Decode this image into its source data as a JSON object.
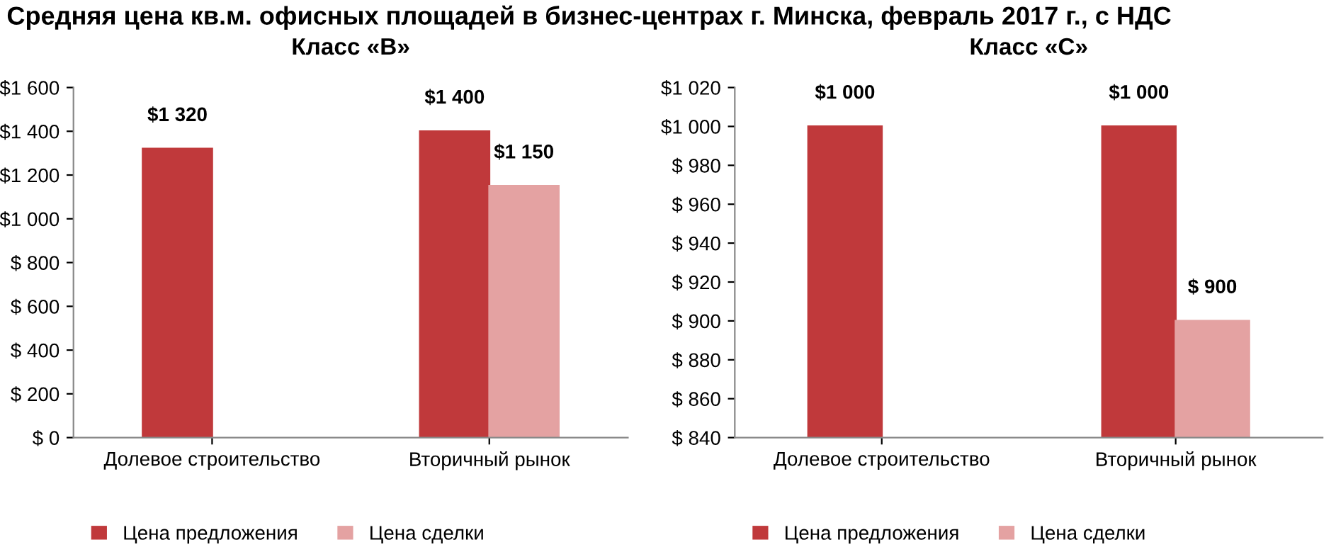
{
  "chart_data": [
    {
      "type": "bar",
      "title": "Средняя цена кв.м. офисных площадей в бизнес-центрах г. Минска, февраль 2017 г., с НДС",
      "subtitle": "Класс «В»",
      "categories": [
        "Долевое строительство",
        "Вторичный рынок"
      ],
      "series": [
        {
          "name": "Цена предложения",
          "color": "#c0393b",
          "values": [
            1320,
            1400
          ],
          "value_labels": [
            "$1 320",
            "$1 400"
          ]
        },
        {
          "name": "Цена сделки",
          "color": "#e4a2a2",
          "values": [
            null,
            1150
          ],
          "value_labels": [
            null,
            "$1 150"
          ]
        }
      ],
      "ylim": [
        0,
        1600
      ],
      "yticks": [
        {
          "value": 0,
          "label": "$ 0"
        },
        {
          "value": 200,
          "label": "$ 200"
        },
        {
          "value": 400,
          "label": "$ 400"
        },
        {
          "value": 600,
          "label": "$ 600"
        },
        {
          "value": 800,
          "label": "$ 800"
        },
        {
          "value": 1000,
          "label": "$1 000"
        },
        {
          "value": 1200,
          "label": "$1 200"
        },
        {
          "value": 1400,
          "label": "$1 400"
        },
        {
          "value": 1600,
          "label": "$1 600"
        }
      ],
      "grid": false,
      "legend": "bottom left"
    },
    {
      "type": "bar",
      "subtitle": "Класс «С»",
      "categories": [
        "Долевое строительство",
        "Вторичный рынок"
      ],
      "series": [
        {
          "name": "Цена предложения",
          "color": "#c0393b",
          "values": [
            1000,
            1000
          ],
          "value_labels": [
            "$1 000",
            "$1 000"
          ]
        },
        {
          "name": "Цена сделки",
          "color": "#e4a2a2",
          "values": [
            null,
            900
          ],
          "value_labels": [
            null,
            "$ 900"
          ]
        }
      ],
      "ylim": [
        840,
        1020
      ],
      "yticks": [
        {
          "value": 840,
          "label": "$ 840"
        },
        {
          "value": 860,
          "label": "$ 860"
        },
        {
          "value": 880,
          "label": "$ 880"
        },
        {
          "value": 900,
          "label": "$ 900"
        },
        {
          "value": 920,
          "label": "$ 920"
        },
        {
          "value": 940,
          "label": "$ 940"
        },
        {
          "value": 960,
          "label": "$ 960"
        },
        {
          "value": 980,
          "label": "$ 980"
        },
        {
          "value": 1000,
          "label": "$1 000"
        },
        {
          "value": 1020,
          "label": "$1 020"
        }
      ],
      "grid": false,
      "legend": "bottom left"
    }
  ]
}
